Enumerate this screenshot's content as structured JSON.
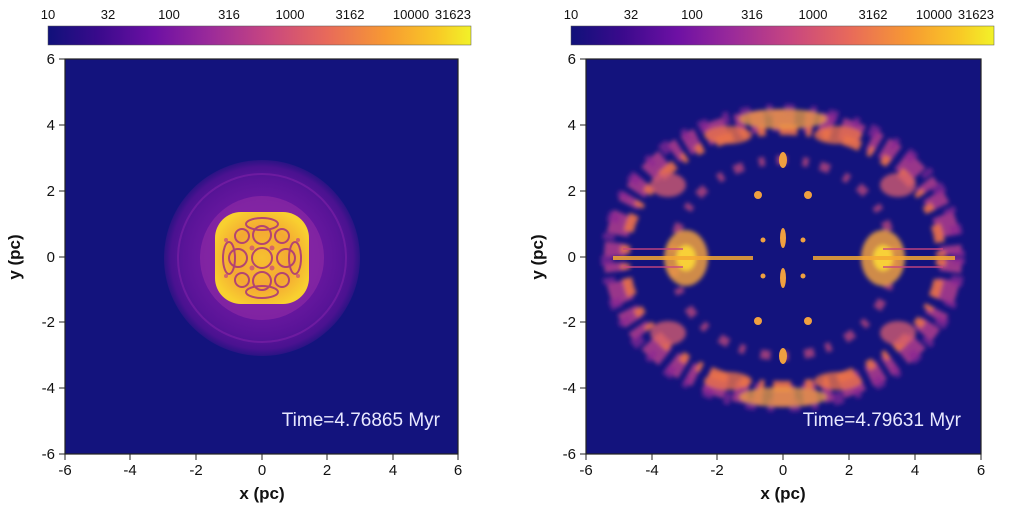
{
  "colorbar": {
    "ticks": [
      "10",
      "32",
      "100",
      "316",
      "1000",
      "3162",
      "10000",
      "31623"
    ],
    "colors": [
      "#10117a",
      "#3a0a8c",
      "#6d10a4",
      "#9a2a9a",
      "#c84680",
      "#e86a5a",
      "#f79a32",
      "#f8c926",
      "#f2f228"
    ]
  },
  "panels": [
    {
      "id": "left",
      "xlabel": "x (pc)",
      "ylabel": "y (pc)",
      "xticks": [
        "-6",
        "-4",
        "-2",
        "0",
        "2",
        "4",
        "6"
      ],
      "yticks": [
        "6",
        "4",
        "2",
        "0",
        "-2",
        "-4",
        "-6"
      ],
      "time": "Time=4.76865 Myr"
    },
    {
      "id": "right",
      "xlabel": "x (pc)",
      "ylabel": "y (pc)",
      "xticks": [
        "-6",
        "-4",
        "-2",
        "0",
        "2",
        "4",
        "6"
      ],
      "yticks": [
        "6",
        "4",
        "2",
        "0",
        "-2",
        "-4",
        "-6"
      ],
      "time": "Time=4.79631 Myr"
    }
  ],
  "colors": {
    "background": "#13137d",
    "frame": "#222222"
  }
}
